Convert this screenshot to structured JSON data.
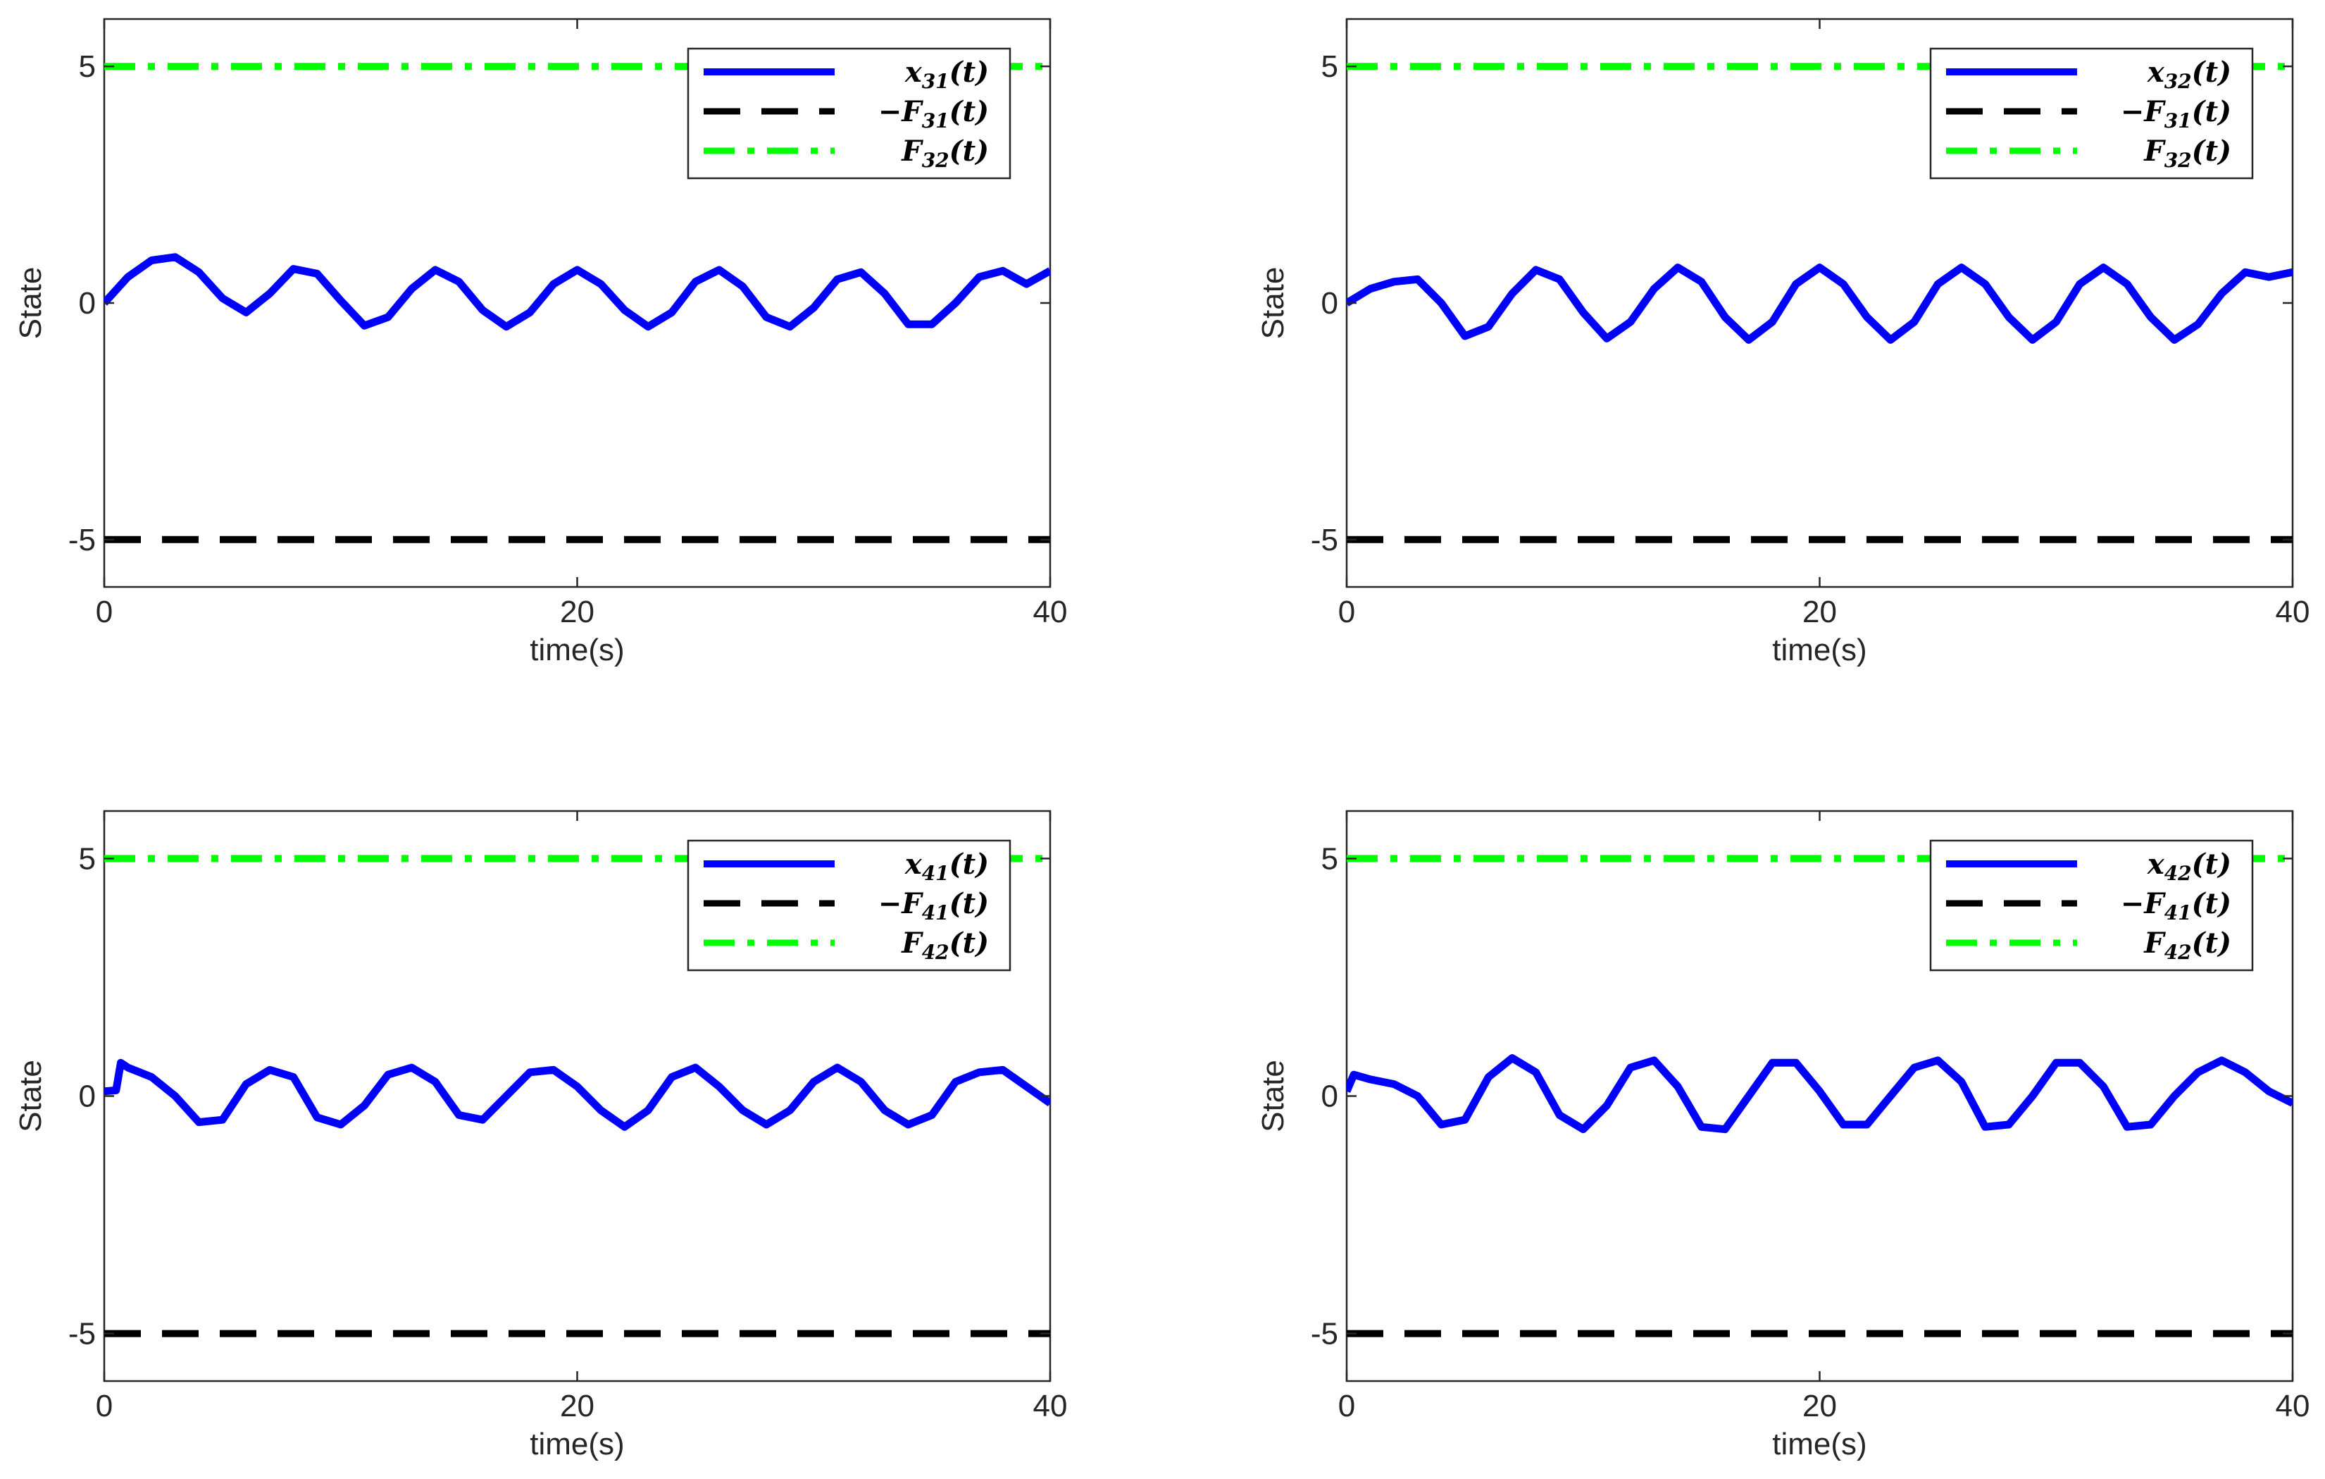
{
  "chart_data": [
    {
      "type": "line",
      "xlabel": "time(s)",
      "ylabel": "State",
      "xlim": [
        0,
        40
      ],
      "ylim": [
        -6,
        6
      ],
      "xticks": [
        "0",
        "20",
        "40"
      ],
      "yticks": [
        "-5",
        "0",
        "5"
      ],
      "legend_position": "top-right",
      "series": [
        {
          "name": "x31(t)",
          "label_main": "x",
          "label_sub": "31",
          "label_tail": "(t)",
          "color": "#0000FF",
          "style": "solid",
          "x": [
            0,
            1,
            2,
            3,
            4,
            5,
            6,
            7,
            8,
            9,
            10,
            11,
            12,
            13,
            14,
            15,
            16,
            17,
            18,
            19,
            20,
            21,
            22,
            23,
            24,
            25,
            26,
            27,
            28,
            29,
            30,
            31,
            32,
            33,
            34,
            35,
            36,
            37,
            38,
            39,
            40
          ],
          "y": [
            0,
            0.55,
            0.9,
            0.97,
            0.65,
            0.1,
            -0.2,
            0.2,
            0.72,
            0.62,
            0.05,
            -0.48,
            -0.3,
            0.3,
            0.7,
            0.45,
            -0.15,
            -0.5,
            -0.2,
            0.4,
            0.7,
            0.4,
            -0.15,
            -0.5,
            -0.2,
            0.45,
            0.7,
            0.35,
            -0.3,
            -0.5,
            -0.1,
            0.5,
            0.65,
            0.2,
            -0.45,
            -0.45,
            0.0,
            0.55,
            0.68,
            0.4,
            0.68
          ]
        },
        {
          "name": "-F31(t)",
          "label_main": "−F",
          "label_sub": "31",
          "label_tail": "(t)",
          "color": "#000000",
          "style": "dashed",
          "x": [
            0,
            40
          ],
          "y": [
            -5,
            -5
          ]
        },
        {
          "name": "F32(t)",
          "label_main": "F",
          "label_sub": "32",
          "label_tail": "(t)",
          "color": "#00FF00",
          "style": "dashdot",
          "x": [
            0,
            40
          ],
          "y": [
            5,
            5
          ]
        }
      ]
    },
    {
      "type": "line",
      "xlabel": "time(s)",
      "ylabel": "State",
      "xlim": [
        0,
        40
      ],
      "ylim": [
        -6,
        6
      ],
      "xticks": [
        "0",
        "20",
        "40"
      ],
      "yticks": [
        "-5",
        "0",
        "5"
      ],
      "legend_position": "top-right",
      "series": [
        {
          "name": "x32(t)",
          "label_main": "x",
          "label_sub": "32",
          "label_tail": "(t)",
          "color": "#0000FF",
          "style": "solid",
          "x": [
            0,
            1,
            2,
            3,
            4,
            5,
            6,
            7,
            8,
            9,
            10,
            11,
            12,
            13,
            14,
            15,
            16,
            17,
            18,
            19,
            20,
            21,
            22,
            23,
            24,
            25,
            26,
            27,
            28,
            29,
            30,
            31,
            32,
            33,
            34,
            35,
            36,
            37,
            38,
            39,
            40
          ],
          "y": [
            0,
            0.3,
            0.45,
            0.5,
            0.0,
            -0.7,
            -0.5,
            0.2,
            0.7,
            0.5,
            -0.2,
            -0.75,
            -0.4,
            0.3,
            0.75,
            0.45,
            -0.3,
            -0.78,
            -0.4,
            0.4,
            0.75,
            0.4,
            -0.3,
            -0.78,
            -0.4,
            0.4,
            0.75,
            0.4,
            -0.3,
            -0.78,
            -0.4,
            0.4,
            0.75,
            0.4,
            -0.3,
            -0.78,
            -0.45,
            0.2,
            0.65,
            0.55,
            0.65
          ]
        },
        {
          "name": "-F31(t)",
          "label_main": "−F",
          "label_sub": "31",
          "label_tail": "(t)",
          "color": "#000000",
          "style": "dashed",
          "x": [
            0,
            40
          ],
          "y": [
            -5,
            -5
          ]
        },
        {
          "name": "F32(t)",
          "label_main": "F",
          "label_sub": "32",
          "label_tail": "(t)",
          "color": "#00FF00",
          "style": "dashdot",
          "x": [
            0,
            40
          ],
          "y": [
            5,
            5
          ]
        }
      ]
    },
    {
      "type": "line",
      "xlabel": "time(s)",
      "ylabel": "State",
      "xlim": [
        0,
        40
      ],
      "ylim": [
        -6,
        6
      ],
      "xticks": [
        "0",
        "20",
        "40"
      ],
      "yticks": [
        "-5",
        "0",
        "5"
      ],
      "legend_position": "top-right",
      "series": [
        {
          "name": "x41(t)",
          "label_main": "x",
          "label_sub": "41",
          "label_tail": "(t)",
          "color": "#0000FF",
          "style": "solid",
          "x": [
            0,
            0.5,
            0.7,
            1,
            2,
            3,
            4,
            5,
            6,
            7,
            8,
            9,
            10,
            11,
            12,
            13,
            14,
            15,
            16,
            17,
            18,
            19,
            20,
            21,
            22,
            23,
            24,
            25,
            26,
            27,
            28,
            29,
            30,
            31,
            32,
            33,
            34,
            35,
            36,
            37,
            38,
            39,
            40
          ],
          "y": [
            0.1,
            0.12,
            0.7,
            0.6,
            0.4,
            0.0,
            -0.55,
            -0.5,
            0.25,
            0.55,
            0.4,
            -0.45,
            -0.6,
            -0.2,
            0.45,
            0.6,
            0.3,
            -0.4,
            -0.5,
            0.0,
            0.5,
            0.55,
            0.2,
            -0.3,
            -0.65,
            -0.3,
            0.4,
            0.6,
            0.2,
            -0.3,
            -0.6,
            -0.3,
            0.3,
            0.6,
            0.3,
            -0.3,
            -0.6,
            -0.4,
            0.3,
            0.5,
            0.55,
            0.2,
            -0.15
          ]
        },
        {
          "name": "-F41(t)",
          "label_main": "−F",
          "label_sub": "41",
          "label_tail": "(t)",
          "color": "#000000",
          "style": "dashed",
          "x": [
            0,
            40
          ],
          "y": [
            -5,
            -5
          ]
        },
        {
          "name": "F42(t)",
          "label_main": "F",
          "label_sub": "42",
          "label_tail": "(t)",
          "color": "#00FF00",
          "style": "dashdot",
          "x": [
            0,
            40
          ],
          "y": [
            5,
            5
          ]
        }
      ]
    },
    {
      "type": "line",
      "xlabel": "time(s)",
      "ylabel": "State",
      "xlim": [
        0,
        40
      ],
      "ylim": [
        -6,
        6
      ],
      "xticks": [
        "0",
        "20",
        "40"
      ],
      "yticks": [
        "-5",
        "0",
        "5"
      ],
      "legend_position": "top-right",
      "series": [
        {
          "name": "x42(t)",
          "label_main": "x",
          "label_sub": "42",
          "label_tail": "(t)",
          "color": "#0000FF",
          "style": "solid",
          "x": [
            0,
            0.3,
            1,
            2,
            3,
            4,
            5,
            6,
            7,
            8,
            9,
            10,
            11,
            12,
            13,
            14,
            15,
            16,
            17,
            18,
            19,
            20,
            21,
            22,
            23,
            24,
            25,
            26,
            27,
            28,
            29,
            30,
            31,
            32,
            33,
            34,
            35,
            36,
            37,
            38,
            39,
            40
          ],
          "y": [
            0.1,
            0.45,
            0.35,
            0.25,
            0.0,
            -0.6,
            -0.5,
            0.4,
            0.8,
            0.5,
            -0.4,
            -0.7,
            -0.2,
            0.6,
            0.75,
            0.2,
            -0.65,
            -0.7,
            0.0,
            0.7,
            0.7,
            0.1,
            -0.6,
            -0.6,
            0.0,
            0.6,
            0.75,
            0.3,
            -0.65,
            -0.6,
            0.0,
            0.7,
            0.7,
            0.2,
            -0.65,
            -0.6,
            0.0,
            0.5,
            0.75,
            0.5,
            0.1,
            -0.15
          ]
        },
        {
          "name": "-F41(t)",
          "label_main": "−F",
          "label_sub": "41",
          "label_tail": "(t)",
          "color": "#000000",
          "style": "dashed",
          "x": [
            0,
            40
          ],
          "y": [
            -5,
            -5
          ]
        },
        {
          "name": "F42(t)",
          "label_main": "F",
          "label_sub": "42",
          "label_tail": "(t)",
          "color": "#00FF00",
          "style": "dashdot",
          "x": [
            0,
            40
          ],
          "y": [
            5,
            5
          ]
        }
      ]
    }
  ]
}
